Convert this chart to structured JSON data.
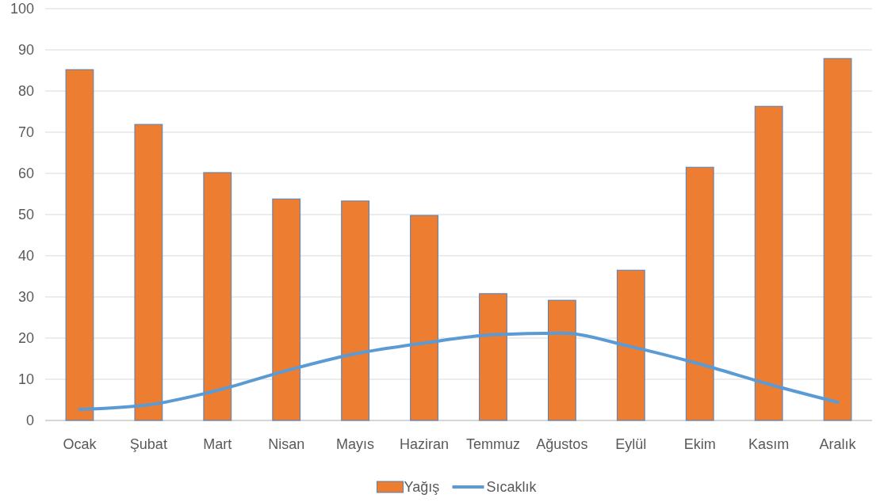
{
  "chart_data": {
    "type": "bar",
    "categories": [
      "Ocak",
      "Şubat",
      "Mart",
      "Nisan",
      "Mayıs",
      "Haziran",
      "Temmuz",
      "Ağustos",
      "Eylül",
      "Ekim",
      "Kasım",
      "Aralık"
    ],
    "series": [
      {
        "name": "Yağış",
        "color": "#ed7d31",
        "values": [
          85.2,
          71.9,
          60.2,
          53.8,
          53.3,
          49.8,
          30.8,
          29.2,
          36.5,
          61.5,
          76.3,
          87.9
        ]
      },
      {
        "name": "Sıcaklık",
        "type": "line",
        "color": "#5b9bd5",
        "values": [
          2.7,
          3.8,
          7.3,
          12.1,
          16.2,
          18.8,
          20.8,
          21.2,
          17.9,
          13.7,
          8.8,
          4.4
        ]
      }
    ],
    "ylim": [
      0,
      100
    ],
    "yticks": [
      0,
      10,
      20,
      30,
      40,
      50,
      60,
      70,
      80,
      90,
      100
    ],
    "grid": "y",
    "legend": "bottom",
    "marker": "none"
  }
}
